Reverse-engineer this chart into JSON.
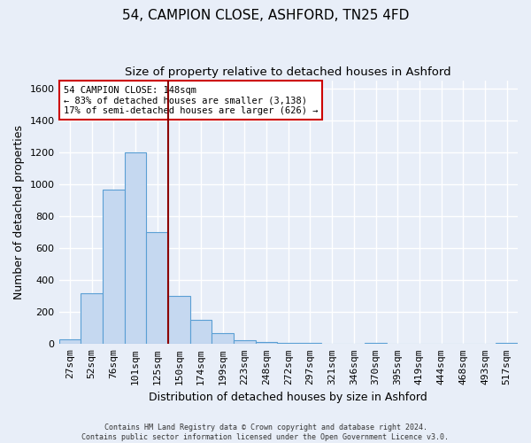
{
  "title1": "54, CAMPION CLOSE, ASHFORD, TN25 4FD",
  "title2": "Size of property relative to detached houses in Ashford",
  "xlabel": "Distribution of detached houses by size in Ashford",
  "ylabel": "Number of detached properties",
  "footnote": "Contains HM Land Registry data © Crown copyright and database right 2024.\nContains public sector information licensed under the Open Government Licence v3.0.",
  "bin_labels": [
    "27sqm",
    "52sqm",
    "76sqm",
    "101sqm",
    "125sqm",
    "150sqm",
    "174sqm",
    "199sqm",
    "223sqm",
    "248sqm",
    "272sqm",
    "297sqm",
    "321sqm",
    "346sqm",
    "370sqm",
    "395sqm",
    "419sqm",
    "444sqm",
    "468sqm",
    "493sqm",
    "517sqm"
  ],
  "bar_values": [
    30,
    320,
    965,
    1200,
    700,
    300,
    150,
    70,
    25,
    15,
    10,
    10,
    0,
    0,
    10,
    0,
    0,
    0,
    0,
    0,
    10
  ],
  "bar_color": "#c5d8f0",
  "bar_edge_color": "#5a9fd4",
  "vline_x_index": 5,
  "vline_color": "#8b0000",
  "annotation_text": "54 CAMPION CLOSE: 148sqm\n← 83% of detached houses are smaller (3,138)\n17% of semi-detached houses are larger (626) →",
  "annotation_box_color": "#ffffff",
  "annotation_box_edge_color": "#cc0000",
  "ylim": [
    0,
    1650
  ],
  "yticks": [
    0,
    200,
    400,
    600,
    800,
    1000,
    1200,
    1400,
    1600
  ],
  "background_color": "#e8eef8",
  "grid_color": "#ffffff",
  "title1_fontsize": 11,
  "title2_fontsize": 9.5,
  "axis_fontsize": 8,
  "ylabel_fontsize": 9,
  "xlabel_fontsize": 9
}
